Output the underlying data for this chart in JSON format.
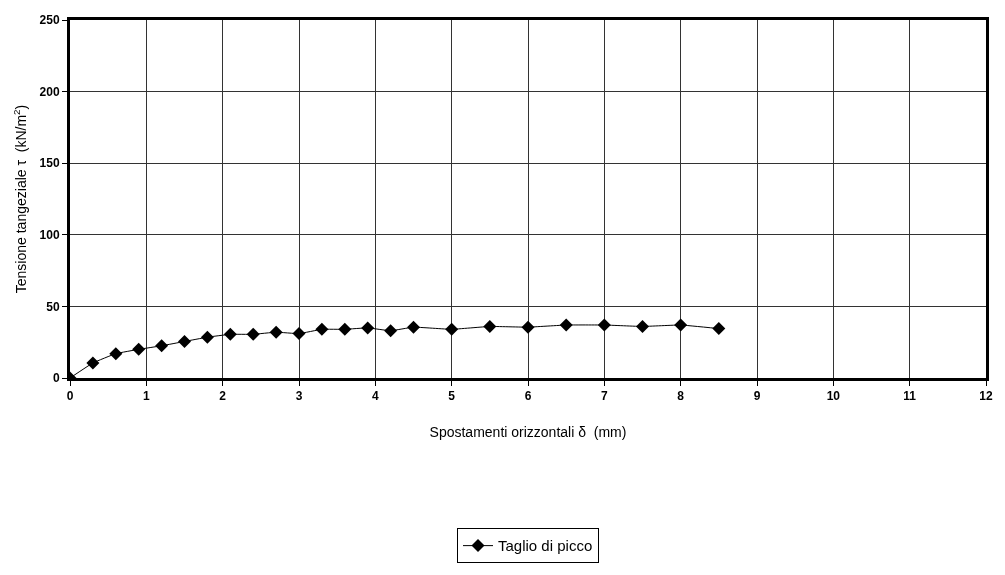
{
  "chart_data": {
    "type": "line",
    "xlabel": "Spostamenti orizzontali δ  (mm)",
    "ylabel": "Tensione tangeziale τ  (kN/m$^{2}$)",
    "x": [
      0,
      0.3,
      0.6,
      0.9,
      1.2,
      1.5,
      1.8,
      2.1,
      2.4,
      2.7,
      3,
      3.3,
      3.6,
      3.9,
      4.2,
      4.5,
      5,
      5.5,
      6,
      6.5,
      7,
      7.5,
      8,
      8.5
    ],
    "series": [
      {
        "name": "Taglio di picco",
        "color": "#000000",
        "values": [
          0,
          10.5,
          17,
          20,
          22.5,
          25.5,
          28.5,
          30.5,
          30.5,
          32,
          31,
          34,
          34,
          35,
          33,
          35.5,
          34,
          36,
          35.5,
          37,
          37,
          36,
          37,
          34.5
        ]
      }
    ],
    "xlim": [
      0,
      12
    ],
    "xticks": [
      0,
      1,
      2,
      3,
      4,
      5,
      6,
      7,
      8,
      9,
      10,
      11,
      12
    ],
    "ylim": [
      0,
      250
    ],
    "yticks": [
      0,
      50,
      100,
      150,
      200,
      250
    ],
    "grid": true,
    "legend": "bottom",
    "marker": "diamond",
    "line_style": "solid"
  }
}
